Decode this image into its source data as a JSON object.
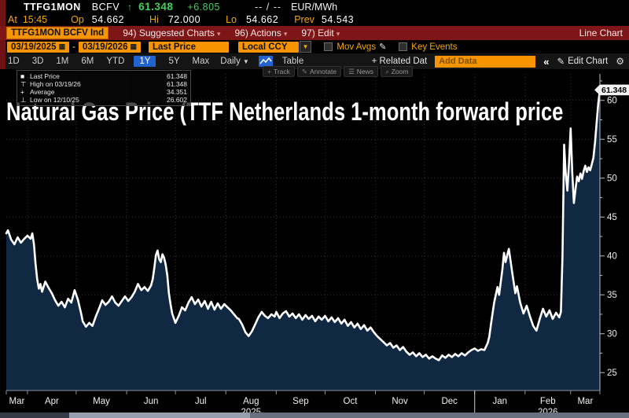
{
  "header": {
    "ticker": "TTFG1MON",
    "sec_type": "BCFV",
    "arrow": "↑",
    "last": "61.348",
    "change": "+6.805",
    "quote": "-- / --",
    "unit": "EUR/MWh",
    "at_label": "At",
    "at_time": "15:45",
    "op_label": "Op",
    "op_val": "54.662",
    "hi_label": "Hi",
    "hi_val": "72.000",
    "lo_label": "Lo",
    "lo_val": "54.662",
    "prev_label": "Prev",
    "prev_val": "54.543"
  },
  "menubar": {
    "chip": "TTFG1MON BCFV Ind",
    "items": [
      "94) Suggested Charts",
      "96) Actions",
      "97) Edit"
    ],
    "arrow": "▾",
    "right": "Line Chart"
  },
  "controls": {
    "date_from": "03/19/2025",
    "date_to": "03/19/2026",
    "dash": "-",
    "calendar_icon": "▦",
    "field": "Last Price",
    "currency": "Local CCY",
    "dd_arrow": "▼",
    "mov_avgs": "Mov Avgs",
    "pencil": "✎",
    "key_events": "Key Events"
  },
  "tabsbar": {
    "ranges": [
      "1D",
      "3D",
      "1M",
      "6M",
      "YTD",
      "1Y",
      "5Y",
      "Max"
    ],
    "active_range": "1Y",
    "freq": "Daily",
    "freq_arrow": "▼",
    "table": "Table",
    "related": "+ Related Dat",
    "add_data": "Add Data",
    "collapse": "«",
    "edit_pencil": "✎",
    "edit_chart": "Edit Chart",
    "gear": "⚙"
  },
  "chart": {
    "title": "Natural Gas Price (TTF Netherlands 1-month forward price",
    "last_badge": "61.348",
    "legend": [
      {
        "glyph": "■",
        "label": "Last Price",
        "value": "61.348"
      },
      {
        "glyph": "⊤",
        "label": "High on 03/19/26",
        "value": "61.348"
      },
      {
        "glyph": "+",
        "label": "Average",
        "value": "34.351"
      },
      {
        "glyph": "⊥",
        "label": "Low on 12/10/25",
        "value": "26.602"
      }
    ],
    "tools": [
      {
        "icon": "+",
        "label": "Track"
      },
      {
        "icon": "✎",
        "label": "Annotate"
      },
      {
        "icon": "☰",
        "label": "News"
      },
      {
        "icon": "⌕",
        "label": "Zoom"
      }
    ]
  },
  "colors": {
    "amber": "#f79400",
    "bar_red": "#7e1517",
    "tab_blue": "#2363cf",
    "up_green": "#3fd159",
    "area_navy": "#102842",
    "line_white": "#ffffff",
    "grid": "#353535",
    "axis": "#b8bec6",
    "axis_text": "#ececec"
  },
  "chart_data": {
    "type": "area",
    "title": "Natural Gas Price (TTF Netherlands 1-month forward price",
    "unit": "EUR/MWh",
    "start_date": "03/19/2025",
    "end_date": "03/19/2026",
    "total_days": 365,
    "ylim": [
      22.7,
      62.5
    ],
    "y_ticks": [
      25,
      30,
      35,
      40,
      45,
      50,
      55,
      60
    ],
    "x_months": [
      "Mar",
      "Apr",
      "May",
      "Jun",
      "Jul",
      "Aug",
      "Sep",
      "Oct",
      "Nov",
      "Dec",
      "Jan",
      "Feb",
      "Mar"
    ],
    "month_boundary_days": [
      0,
      13,
      43,
      74,
      104,
      135,
      166,
      196,
      227,
      257,
      288,
      319,
      347,
      365
    ],
    "year_labels": [
      {
        "text": "2025",
        "month_index": 5
      },
      {
        "text": "2026",
        "month_index": 11
      }
    ],
    "year_divider_day": 288,
    "last_price": 61.348,
    "high": {
      "date": "03/19/26",
      "value": 61.348
    },
    "low": {
      "date": "12/10/25",
      "value": 26.602
    },
    "average": 34.351,
    "points": [
      [
        0,
        42.9
      ],
      [
        1,
        43.3
      ],
      [
        3,
        42.1
      ],
      [
        5,
        41.5
      ],
      [
        7,
        42.4
      ],
      [
        9,
        41.7
      ],
      [
        11,
        42.2
      ],
      [
        13,
        42.6
      ],
      [
        15,
        42.2
      ],
      [
        16,
        42.9
      ],
      [
        17,
        41.5
      ],
      [
        18,
        39.0
      ],
      [
        19,
        37.0
      ],
      [
        20,
        35.8
      ],
      [
        21,
        36.4
      ],
      [
        22,
        35.4
      ],
      [
        24,
        36.7
      ],
      [
        26,
        35.9
      ],
      [
        28,
        35.2
      ],
      [
        30,
        34.3
      ],
      [
        32,
        33.6
      ],
      [
        34,
        34.1
      ],
      [
        36,
        33.4
      ],
      [
        38,
        34.5
      ],
      [
        40,
        34.0
      ],
      [
        42,
        35.6
      ],
      [
        44,
        34.4
      ],
      [
        46,
        32.6
      ],
      [
        47,
        31.6
      ],
      [
        49,
        30.9
      ],
      [
        51,
        31.4
      ],
      [
        53,
        31.0
      ],
      [
        55,
        32.2
      ],
      [
        57,
        33.2
      ],
      [
        59,
        34.3
      ],
      [
        61,
        33.7
      ],
      [
        63,
        34.1
      ],
      [
        65,
        34.8
      ],
      [
        67,
        34.0
      ],
      [
        69,
        33.6
      ],
      [
        71,
        34.2
      ],
      [
        73,
        34.8
      ],
      [
        75,
        34.2
      ],
      [
        77,
        34.7
      ],
      [
        79,
        35.4
      ],
      [
        81,
        36.4
      ],
      [
        83,
        35.6
      ],
      [
        85,
        36.0
      ],
      [
        87,
        35.5
      ],
      [
        89,
        36.2
      ],
      [
        90,
        37.0
      ],
      [
        91,
        38.4
      ],
      [
        92,
        40.1
      ],
      [
        93,
        40.7
      ],
      [
        94,
        39.6
      ],
      [
        95,
        39.2
      ],
      [
        96,
        40.2
      ],
      [
        97,
        39.8
      ],
      [
        98,
        38.9
      ],
      [
        99,
        37.5
      ],
      [
        100,
        35.2
      ],
      [
        101,
        33.8
      ],
      [
        102,
        32.6
      ],
      [
        104,
        31.4
      ],
      [
        106,
        32.3
      ],
      [
        108,
        33.4
      ],
      [
        110,
        33.0
      ],
      [
        112,
        34.0
      ],
      [
        114,
        34.7
      ],
      [
        116,
        33.8
      ],
      [
        118,
        34.4
      ],
      [
        120,
        33.5
      ],
      [
        122,
        34.2
      ],
      [
        124,
        33.2
      ],
      [
        126,
        34.1
      ],
      [
        128,
        33.1
      ],
      [
        130,
        33.9
      ],
      [
        132,
        33.2
      ],
      [
        134,
        33.8
      ],
      [
        136,
        33.4
      ],
      [
        138,
        33.0
      ],
      [
        140,
        32.5
      ],
      [
        142,
        32.0
      ],
      [
        143,
        31.9
      ],
      [
        145,
        31.2
      ],
      [
        147,
        30.2
      ],
      [
        149,
        29.7
      ],
      [
        151,
        30.3
      ],
      [
        153,
        31.2
      ],
      [
        155,
        32.1
      ],
      [
        157,
        32.8
      ],
      [
        159,
        32.3
      ],
      [
        161,
        32.0
      ],
      [
        163,
        32.5
      ],
      [
        165,
        32.2
      ],
      [
        166,
        32.8
      ],
      [
        168,
        32.0
      ],
      [
        170,
        32.6
      ],
      [
        172,
        32.9
      ],
      [
        174,
        32.2
      ],
      [
        176,
        32.6
      ],
      [
        178,
        32.0
      ],
      [
        180,
        32.5
      ],
      [
        182,
        31.8
      ],
      [
        184,
        32.4
      ],
      [
        186,
        31.9
      ],
      [
        188,
        32.3
      ],
      [
        190,
        31.6
      ],
      [
        192,
        32.2
      ],
      [
        194,
        31.8
      ],
      [
        196,
        32.3
      ],
      [
        198,
        31.6
      ],
      [
        200,
        32.1
      ],
      [
        202,
        31.5
      ],
      [
        204,
        32.0
      ],
      [
        206,
        31.3
      ],
      [
        208,
        31.8
      ],
      [
        210,
        31.0
      ],
      [
        212,
        31.5
      ],
      [
        214,
        30.8
      ],
      [
        216,
        31.3
      ],
      [
        218,
        30.6
      ],
      [
        220,
        31.1
      ],
      [
        222,
        30.4
      ],
      [
        224,
        30.8
      ],
      [
        226,
        30.2
      ],
      [
        228,
        29.7
      ],
      [
        230,
        29.3
      ],
      [
        232,
        28.9
      ],
      [
        234,
        28.5
      ],
      [
        236,
        28.8
      ],
      [
        238,
        28.2
      ],
      [
        240,
        28.5
      ],
      [
        242,
        27.9
      ],
      [
        244,
        28.3
      ],
      [
        246,
        27.7
      ],
      [
        248,
        27.3
      ],
      [
        250,
        27.6
      ],
      [
        252,
        27.1
      ],
      [
        254,
        27.5
      ],
      [
        256,
        27.0
      ],
      [
        258,
        27.3
      ],
      [
        260,
        26.8
      ],
      [
        262,
        27.1
      ],
      [
        264,
        26.8
      ],
      [
        266,
        26.6
      ],
      [
        268,
        27.2
      ],
      [
        270,
        26.9
      ],
      [
        272,
        27.3
      ],
      [
        274,
        27.0
      ],
      [
        276,
        27.4
      ],
      [
        278,
        27.1
      ],
      [
        280,
        27.5
      ],
      [
        282,
        27.2
      ],
      [
        284,
        27.6
      ],
      [
        286,
        27.9
      ],
      [
        288,
        28.1
      ],
      [
        290,
        27.8
      ],
      [
        292,
        28.0
      ],
      [
        294,
        27.9
      ],
      [
        296,
        28.8
      ],
      [
        297,
        29.6
      ],
      [
        298,
        31.2
      ],
      [
        300,
        34.0
      ],
      [
        302,
        36.0
      ],
      [
        303,
        35.0
      ],
      [
        305,
        38.2
      ],
      [
        306,
        40.4
      ],
      [
        307,
        39.2
      ],
      [
        308,
        40.1
      ],
      [
        309,
        40.9
      ],
      [
        311,
        38.0
      ],
      [
        313,
        35.2
      ],
      [
        314,
        36.1
      ],
      [
        316,
        34.0
      ],
      [
        318,
        32.6
      ],
      [
        320,
        33.6
      ],
      [
        322,
        32.2
      ],
      [
        324,
        31.0
      ],
      [
        326,
        30.4
      ],
      [
        328,
        31.9
      ],
      [
        330,
        33.2
      ],
      [
        332,
        32.2
      ],
      [
        334,
        33.0
      ],
      [
        336,
        31.9
      ],
      [
        338,
        32.7
      ],
      [
        340,
        32.1
      ],
      [
        341,
        32.8
      ],
      [
        342,
        40.0
      ],
      [
        343,
        54.3
      ],
      [
        344,
        50.5
      ],
      [
        345,
        48.4
      ],
      [
        346,
        52.0
      ],
      [
        347,
        56.4
      ],
      [
        348,
        50.8
      ],
      [
        349,
        46.8
      ],
      [
        350,
        48.6
      ],
      [
        351,
        50.2
      ],
      [
        352,
        49.6
      ],
      [
        353,
        50.6
      ],
      [
        354,
        49.9
      ],
      [
        355,
        50.9
      ],
      [
        356,
        51.6
      ],
      [
        357,
        50.8
      ],
      [
        358,
        51.4
      ],
      [
        359,
        51.0
      ],
      [
        360,
        51.8
      ],
      [
        361,
        52.6
      ],
      [
        362,
        54.6
      ],
      [
        363,
        57.2
      ],
      [
        364,
        59.6
      ],
      [
        365,
        61.348
      ]
    ]
  }
}
